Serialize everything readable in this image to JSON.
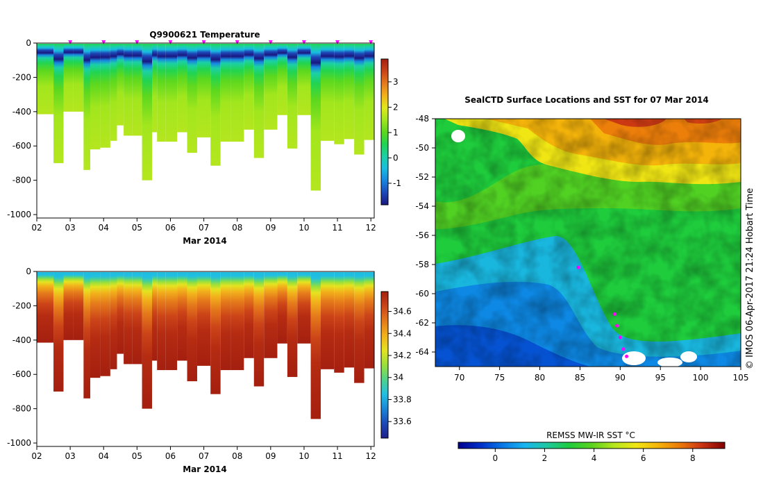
{
  "colors": {
    "sst_scale": [
      "#00008f",
      "#0030c8",
      "#0a78e6",
      "#18b4f0",
      "#1ec8a0",
      "#1ecc3c",
      "#5ad21e",
      "#b4e61e",
      "#f0e614",
      "#f5b40a",
      "#eb780a",
      "#c83214",
      "#820000"
    ],
    "sal_scale": [
      "#1f1f8a",
      "#1c49b9",
      "#1a87d7",
      "#22bfe1",
      "#4fd38a",
      "#9ae03a",
      "#e5e320",
      "#f2b21b",
      "#e57a1b",
      "#cc4418",
      "#a51f0f"
    ],
    "temp_scale": [
      "#1a1780",
      "#1c49b9",
      "#1786e0",
      "#19bce0",
      "#1bd0a6",
      "#21d451",
      "#5cd81e",
      "#a2e61d",
      "#e2e81a",
      "#f2b21b",
      "#e57a1b",
      "#cc4418",
      "#a51f0f"
    ],
    "track": "#ff00ff",
    "ice": "#ffffff"
  },
  "chart_data": [
    {
      "type": "heatmap",
      "title": "Q9900621  Temperature",
      "xlabel": "Mar 2014",
      "ylabel": "",
      "x_ticks": [
        "02",
        "03",
        "04",
        "05",
        "06",
        "07",
        "08",
        "09",
        "10",
        "11",
        "12"
      ],
      "x_range": [
        2,
        12.1
      ],
      "y_range": [
        -1020,
        0
      ],
      "y_ticks": [
        0,
        -200,
        -400,
        -600,
        -800,
        -1000
      ],
      "colorbar": {
        "range": [
          -1.85,
          3.9
        ],
        "ticks": [
          -1,
          0,
          1,
          2,
          3
        ],
        "tick_labels": [
          "-1",
          "0",
          "1",
          "2",
          "3"
        ]
      },
      "profile_dates": [
        3,
        4,
        5,
        6,
        7,
        8,
        9,
        10,
        11,
        12
      ],
      "profile_starts": [
        2,
        2.5,
        2.8,
        3.1,
        3.4,
        3.6,
        3.9,
        4.2,
        4.4,
        4.6,
        4.85,
        5.15,
        5.45,
        5.6,
        5.85,
        6.2,
        6.5,
        6.8,
        7.2,
        7.5,
        7.8,
        8.2,
        8.5,
        8.8,
        9.2,
        9.5,
        9.8,
        10.2,
        10.5,
        10.9,
        11.2,
        11.5,
        11.8,
        12.1
      ],
      "profile_max_depth": [
        -415,
        -700,
        -400,
        -400,
        -740,
        -620,
        -610,
        -570,
        -480,
        -540,
        -540,
        -800,
        -520,
        -575,
        -575,
        -520,
        -640,
        -550,
        -715,
        -575,
        -575,
        -505,
        -670,
        -505,
        -420,
        -615,
        -420,
        -860,
        -570,
        -590,
        -560,
        -650,
        -565
      ]
    },
    {
      "type": "heatmap",
      "title": "",
      "xlabel": "Mar 2014",
      "ylabel": "",
      "x_ticks": [
        "02",
        "03",
        "04",
        "05",
        "06",
        "07",
        "08",
        "09",
        "10",
        "11",
        "12"
      ],
      "x_range": [
        2,
        12.1
      ],
      "y_range": [
        -1020,
        0
      ],
      "y_ticks": [
        0,
        -200,
        -400,
        -600,
        -800,
        -1000
      ],
      "colorbar": {
        "range": [
          33.45,
          34.78
        ],
        "ticks": [
          33.6,
          33.8,
          34,
          34.2,
          34.4,
          34.6
        ],
        "tick_labels": [
          "33.6",
          "33.8",
          "34",
          "34.2",
          "34.4",
          "34.6"
        ]
      }
    },
    {
      "type": "heatmap",
      "title": "SealCTD Surface Locations and SST for 07 Mar 2014",
      "xlabel": "",
      "ylabel": "",
      "x_range": [
        67,
        105
      ],
      "y_range": [
        -65,
        -48
      ],
      "x_ticks": [
        70,
        75,
        80,
        85,
        90,
        95,
        100,
        105
      ],
      "x_tick_labels": [
        "70",
        "75",
        "80",
        "85",
        "90",
        "95",
        "100",
        "105"
      ],
      "y_ticks": [
        -48,
        -50,
        -52,
        -54,
        -56,
        -58,
        -60,
        -62,
        -64
      ],
      "y_tick_labels": [
        "-48",
        "-50",
        "-52",
        "-54",
        "-56",
        "-58",
        "-60",
        "-62",
        "-64"
      ],
      "track_lonlat": [
        [
          89.3,
          -61.4
        ],
        [
          89.6,
          -62.2
        ],
        [
          90.0,
          -63.0
        ],
        [
          90.4,
          -63.8
        ],
        [
          90.8,
          -64.3
        ],
        [
          84.8,
          -58.2
        ]
      ],
      "colorbar": {
        "label": "REMSS MW-IR SST °C",
        "range": [
          -1.5,
          9.3
        ],
        "ticks": [
          0,
          2,
          4,
          6,
          8
        ],
        "tick_labels": [
          "0",
          "2",
          "4",
          "6",
          "8"
        ]
      },
      "credit": "© IMOS 06-Apr-2017 21:24 Hobart Time"
    }
  ]
}
